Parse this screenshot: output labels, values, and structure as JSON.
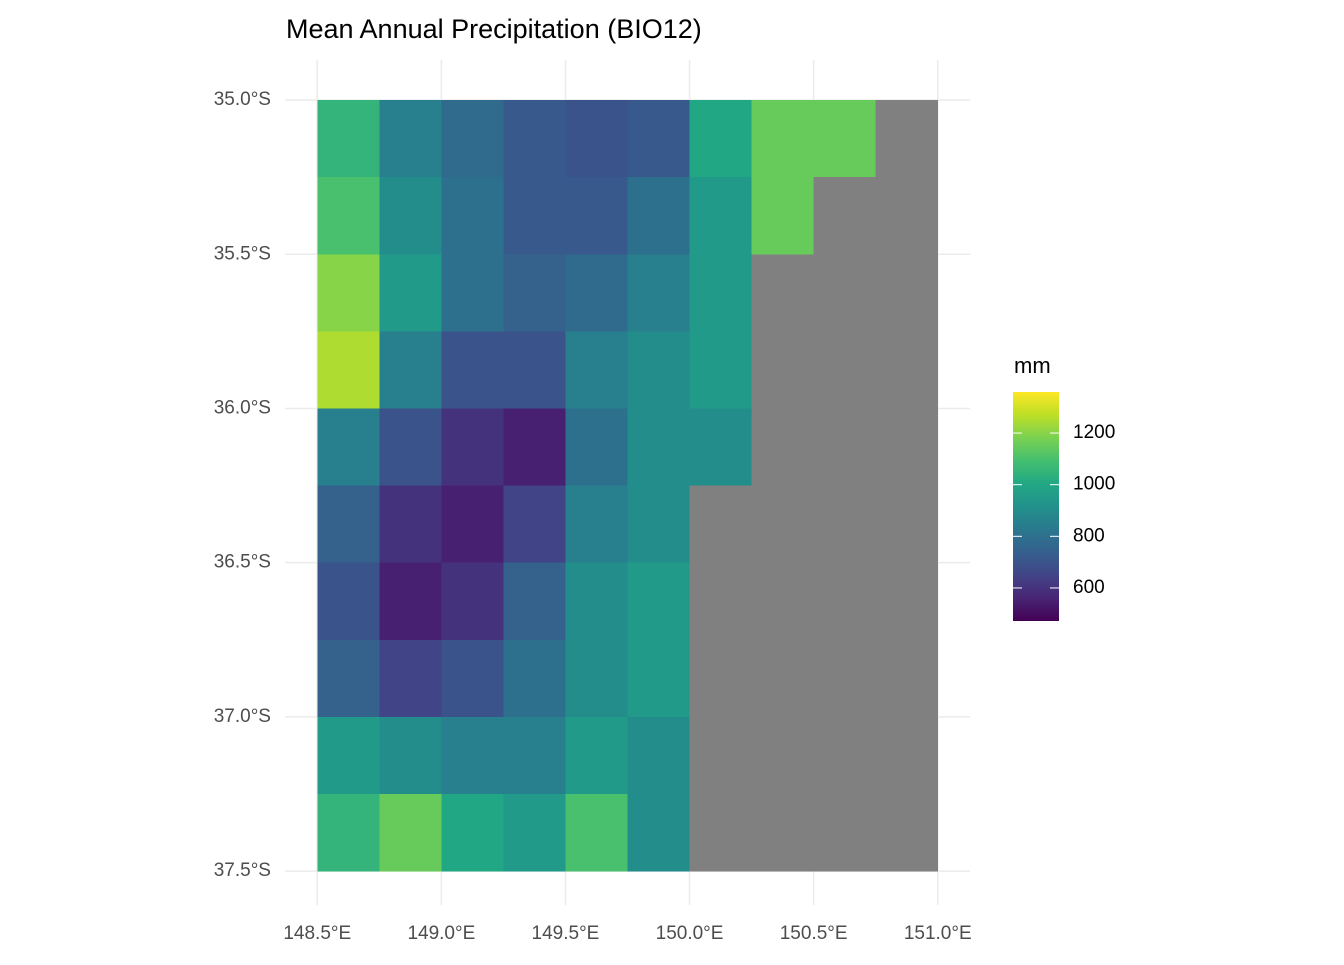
{
  "chart_data": {
    "type": "raster",
    "title": "Mean Annual Precipitation (BIO12)",
    "xlim": [
      148.37,
      151.13
    ],
    "ylim": [
      -37.61,
      -34.87
    ],
    "xticks": [
      {
        "value": 148.5,
        "label": "148.5°E"
      },
      {
        "value": 149.0,
        "label": "149.0°E"
      },
      {
        "value": 149.5,
        "label": "149.5°E"
      },
      {
        "value": 150.0,
        "label": "150.0°E"
      },
      {
        "value": 150.5,
        "label": "150.5°E"
      },
      {
        "value": 151.0,
        "label": "151.0°E"
      }
    ],
    "yticks": [
      {
        "value": -35.0,
        "label": "35.0°S"
      },
      {
        "value": -35.5,
        "label": "35.5°S"
      },
      {
        "value": -36.0,
        "label": "36.0°S"
      },
      {
        "value": -36.5,
        "label": "36.5°S"
      },
      {
        "value": -37.0,
        "label": "37.0°S"
      },
      {
        "value": -37.5,
        "label": "37.5°S"
      }
    ],
    "grid": true,
    "x_edges": [
      148.5,
      148.75,
      149.0,
      149.25,
      149.5,
      149.75,
      150.0,
      150.25,
      150.5,
      150.75,
      151.0
    ],
    "y_edges": [
      -35.0,
      -35.25,
      -35.5,
      -35.75,
      -36.0,
      -36.25,
      -36.5,
      -36.75,
      -37.0,
      -37.25,
      -37.5
    ],
    "values": [
      [
        1050,
        850,
        780,
        720,
        700,
        720,
        1000,
        1150,
        1150,
        null
      ],
      [
        1100,
        900,
        800,
        720,
        720,
        800,
        950,
        1150,
        null,
        null
      ],
      [
        1200,
        950,
        800,
        750,
        780,
        850,
        950,
        null,
        null,
        null
      ],
      [
        1250,
        850,
        700,
        700,
        850,
        900,
        950,
        null,
        null,
        null
      ],
      [
        850,
        700,
        600,
        550,
        800,
        900,
        900,
        null,
        null,
        null
      ],
      [
        750,
        600,
        550,
        650,
        850,
        900,
        null,
        null,
        null,
        null
      ],
      [
        700,
        550,
        600,
        750,
        900,
        950,
        null,
        null,
        null,
        null
      ],
      [
        750,
        650,
        700,
        800,
        900,
        950,
        null,
        null,
        null,
        null
      ],
      [
        950,
        900,
        850,
        850,
        950,
        900,
        null,
        null,
        null,
        null
      ],
      [
        1050,
        1150,
        1000,
        950,
        1100,
        900,
        null,
        null,
        null,
        null
      ]
    ],
    "colormap": "viridis",
    "na_color": "#808080",
    "colorbar": {
      "title": "mm",
      "lim": [
        472,
        1359
      ],
      "ticks": [
        600,
        800,
        1000,
        1200
      ]
    }
  }
}
